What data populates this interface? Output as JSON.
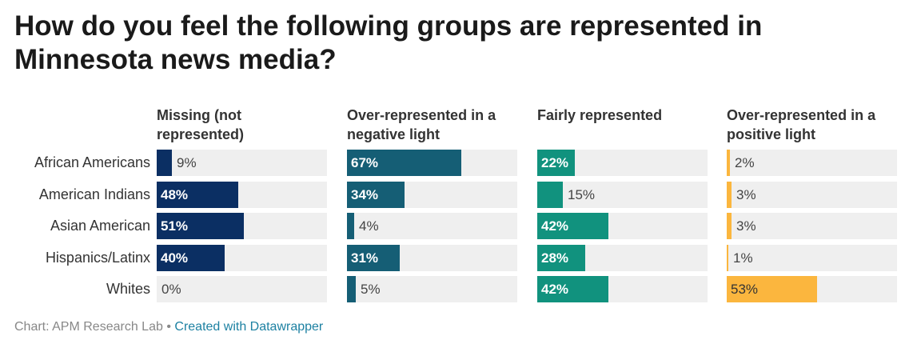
{
  "title": "How do you feel the following groups are represented in Minnesota news media?",
  "footer": {
    "source": "Chart: APM Research Lab",
    "separator": "•",
    "credit": "Created with Datawrapper"
  },
  "chart_data": {
    "type": "bar",
    "title": "How do you feel the following groups are represented in Minnesota news media?",
    "categories": [
      "African Americans",
      "American Indians",
      "Asian American",
      "Hispanics/Latinx",
      "Whites"
    ],
    "xlim": [
      0,
      100
    ],
    "series": [
      {
        "name": "Missing (not represented)",
        "color": "#0b2f63",
        "values": [
          9,
          48,
          51,
          40,
          0
        ],
        "labels": [
          "9%",
          "48%",
          "51%",
          "40%",
          "0%"
        ]
      },
      {
        "name": "Over-represented in a negative light",
        "color": "#155e75",
        "values": [
          67,
          34,
          4,
          31,
          5
        ],
        "labels": [
          "67%",
          "34%",
          "4%",
          "31%",
          "5%"
        ]
      },
      {
        "name": "Fairly represented",
        "color": "#11927e",
        "values": [
          22,
          15,
          42,
          28,
          42
        ],
        "labels": [
          "22%",
          "15%",
          "42%",
          "28%",
          "42%"
        ]
      },
      {
        "name": "Over-represented in a positive light",
        "color": "#fbb63e",
        "values": [
          2,
          3,
          3,
          1,
          53
        ],
        "labels": [
          "2%",
          "3%",
          "3%",
          "1%",
          "53%"
        ]
      }
    ]
  }
}
